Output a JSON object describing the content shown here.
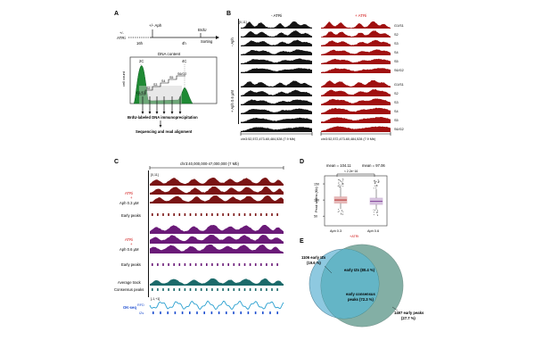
{
  "panels": {
    "A": {
      "letter": "A",
      "timeline": {
        "start_label": "ATRi",
        "start_prefix": "+/-",
        "aph_label": "+/- Aph",
        "t1": "16h",
        "t2": "4h",
        "brdu": "BrdU",
        "end": "Sorting"
      },
      "histogram": {
        "ylabel": "cell count",
        "title": "DNA content",
        "c2": "2C",
        "c4": "4C",
        "fractions": [
          "G1/S1",
          "S2",
          "S3",
          "S4",
          "S5",
          "S6/G2"
        ]
      },
      "steps": [
        "BrdU-labeled DNA immunoprecipitation",
        "Sequencing and read alignment"
      ]
    },
    "B": {
      "letter": "B",
      "col_left": "- ATRi",
      "col_right": "+ ATRi",
      "scale": "[0,11]",
      "row_top": "- Aph",
      "row_bottom": "+ Aph 0.6 μM",
      "fractions": [
        "G1/S1",
        "S2",
        "S3",
        "S4",
        "S5",
        "S6/G2"
      ],
      "coords_left": "chr3:52,572,473-60,484,528 (7.9 Mb)",
      "coords_right": "chr3:52,572,473-60,484,528 (7.9 Mb)"
    },
    "C": {
      "letter": "C",
      "coords": "chr3:40,000,000-47,000,000 (7 Mb)",
      "scale": "[0,11]",
      "group1": {
        "atri": "ATRi",
        "plus": "+",
        "aph": "Aph 0.3 μM",
        "peaks": "Early peaks"
      },
      "group2": {
        "atri": "ATRi",
        "plus": "+",
        "aph": "Aph 0.6 μM",
        "peaks": "Early peaks"
      },
      "avg": "Average track",
      "consensus": "Consensus peaks",
      "okseq": "OK-seq",
      "rfd_scale": "[-1,+1]",
      "rfd": "RFD",
      "izs": "IZs"
    },
    "D": {
      "letter": "D",
      "mean_left": "mean = 104.11",
      "mean_right": "mean = 97.06",
      "pvalue": "< 2.2e−16",
      "ylabel": "Peak widths (Kb)",
      "yticks": [
        "150",
        "100",
        "50"
      ],
      "xlabels": [
        "Aph 0.3",
        "Aph 0.6"
      ],
      "xsub": "+ATRi",
      "boxes": [
        {
          "median": 100,
          "q1": 90,
          "q3": 110,
          "lo": 72,
          "hi": 140,
          "color": "#b83a3a"
        },
        {
          "median": 96,
          "q1": 86,
          "q3": 106,
          "lo": 70,
          "hi": 134,
          "color": "#8a4fa0"
        }
      ]
    },
    "E": {
      "letter": "E",
      "left_label": "1106 early IZs",
      "left_pct": "(19.6 %)",
      "inter1": "early IZs (80.4 %)",
      "inter2": "early consensus",
      "inter3": "peaks (72.3 %)",
      "right_label": "1497 early peaks",
      "right_pct": "(27.7 %)",
      "colors": {
        "left": "#8ec9e0",
        "right": "#1e6e5c"
      }
    }
  },
  "colors": {
    "black_track": "#141414",
    "red_track": "#a01010",
    "dark_red": "#7a1414",
    "purple": "#6a1a78",
    "teal": "#1b6a6a",
    "blue": "#1f4fd0",
    "green_hist": "#1f8a34",
    "accent_red": "#d01010"
  }
}
